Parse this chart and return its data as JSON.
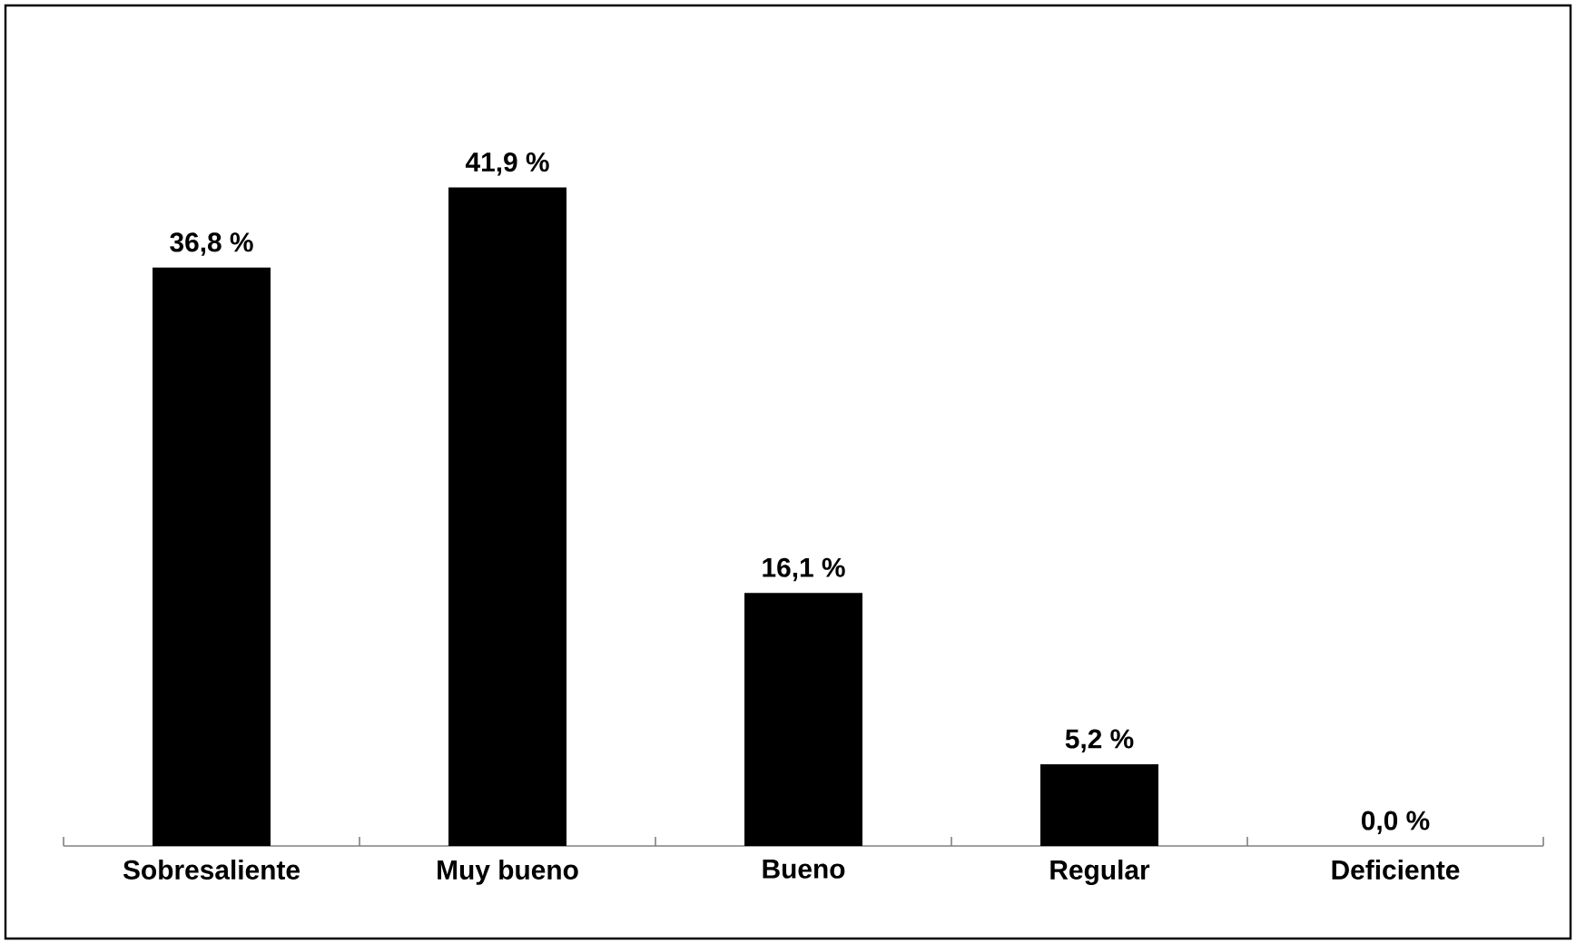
{
  "chart_data": {
    "type": "bar",
    "categories": [
      "Sobresaliente",
      "Muy bueno",
      "Bueno",
      "Regular",
      "Deficiente"
    ],
    "values": [
      36.8,
      41.9,
      16.1,
      5.2,
      0.0
    ],
    "value_labels": [
      "36,8 %",
      "41,9 %",
      "16,1 %",
      "5,2 %",
      "0,0 %"
    ],
    "color": "#000000"
  }
}
